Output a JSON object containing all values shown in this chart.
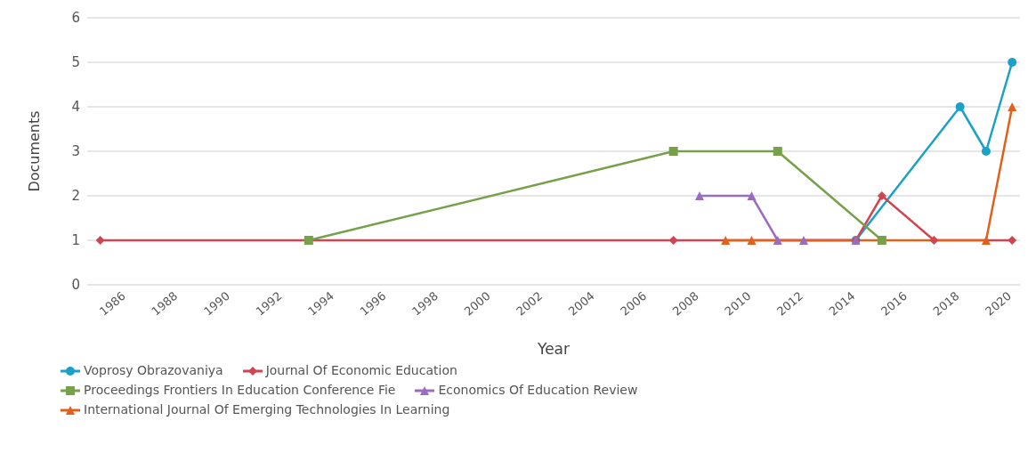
{
  "chart_data": {
    "type": "line",
    "xlabel": "Year",
    "ylabel": "Documents",
    "xlim": [
      1984.5,
      2020.3
    ],
    "xticks": [
      1986,
      1988,
      1990,
      1992,
      1994,
      1996,
      1998,
      2000,
      2002,
      2004,
      2006,
      2008,
      2010,
      2012,
      2014,
      2016,
      2018,
      2020
    ],
    "ylim": [
      0,
      6
    ],
    "yticks": [
      0,
      1,
      2,
      3,
      4,
      5,
      6
    ],
    "grid": "y",
    "legend": "bottom",
    "series": [
      {
        "name": "Voprosy Obrazovaniya",
        "color": "#1ba1c8",
        "marker": "circle",
        "x": [
          2014,
          2018,
          2019,
          2020
        ],
        "values": [
          1,
          4,
          3,
          5
        ]
      },
      {
        "name": "Journal Of Economic Education",
        "color": "#d0454f",
        "marker": "diamond",
        "x": [
          1985,
          2007,
          2014,
          2015,
          2017,
          2020
        ],
        "values": [
          1,
          1,
          1,
          2,
          1,
          1
        ]
      },
      {
        "name": "Proceedings Frontiers In Education Conference Fie",
        "color": "#76a04a",
        "marker": "square",
        "x": [
          1993,
          2007,
          2011,
          2015
        ],
        "values": [
          1,
          3,
          3,
          1
        ]
      },
      {
        "name": "Economics Of Education Review",
        "color": "#9a6cc0",
        "marker": "triangle",
        "x": [
          2008,
          2010,
          2011,
          2012,
          2014
        ],
        "values": [
          2,
          2,
          1,
          1,
          1
        ]
      },
      {
        "name": "International Journal Of Emerging Technologies In Learning",
        "color": "#e0601c",
        "marker": "triangle",
        "x": [
          2009,
          2010,
          2019,
          2020
        ],
        "values": [
          1,
          1,
          1,
          4
        ]
      }
    ]
  }
}
